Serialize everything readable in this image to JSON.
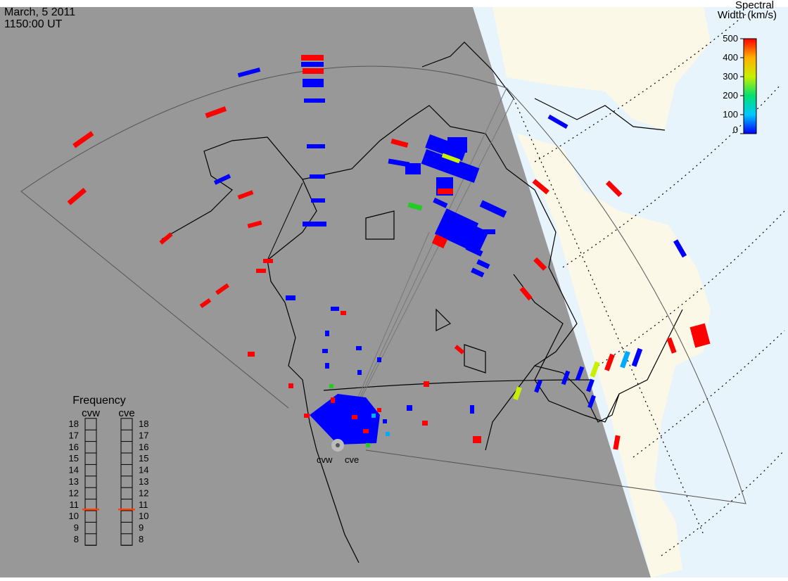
{
  "header": {
    "date": "March, 5 2011",
    "time": "1150:00 UT"
  },
  "colorbar": {
    "title": [
      "Spectral",
      "Width (km/s)"
    ],
    "ticks": [
      0,
      100,
      200,
      300,
      400,
      500
    ],
    "lim": [
      0,
      500
    ]
  },
  "frequency": {
    "title": "Frequency",
    "radars": [
      "cvw",
      "cve"
    ],
    "ticks": [
      8,
      9,
      10,
      11,
      12,
      13,
      14,
      15,
      16,
      17,
      18
    ],
    "current": [
      10.6,
      10.6
    ]
  },
  "radars": [
    "cvw",
    "cve"
  ]
}
